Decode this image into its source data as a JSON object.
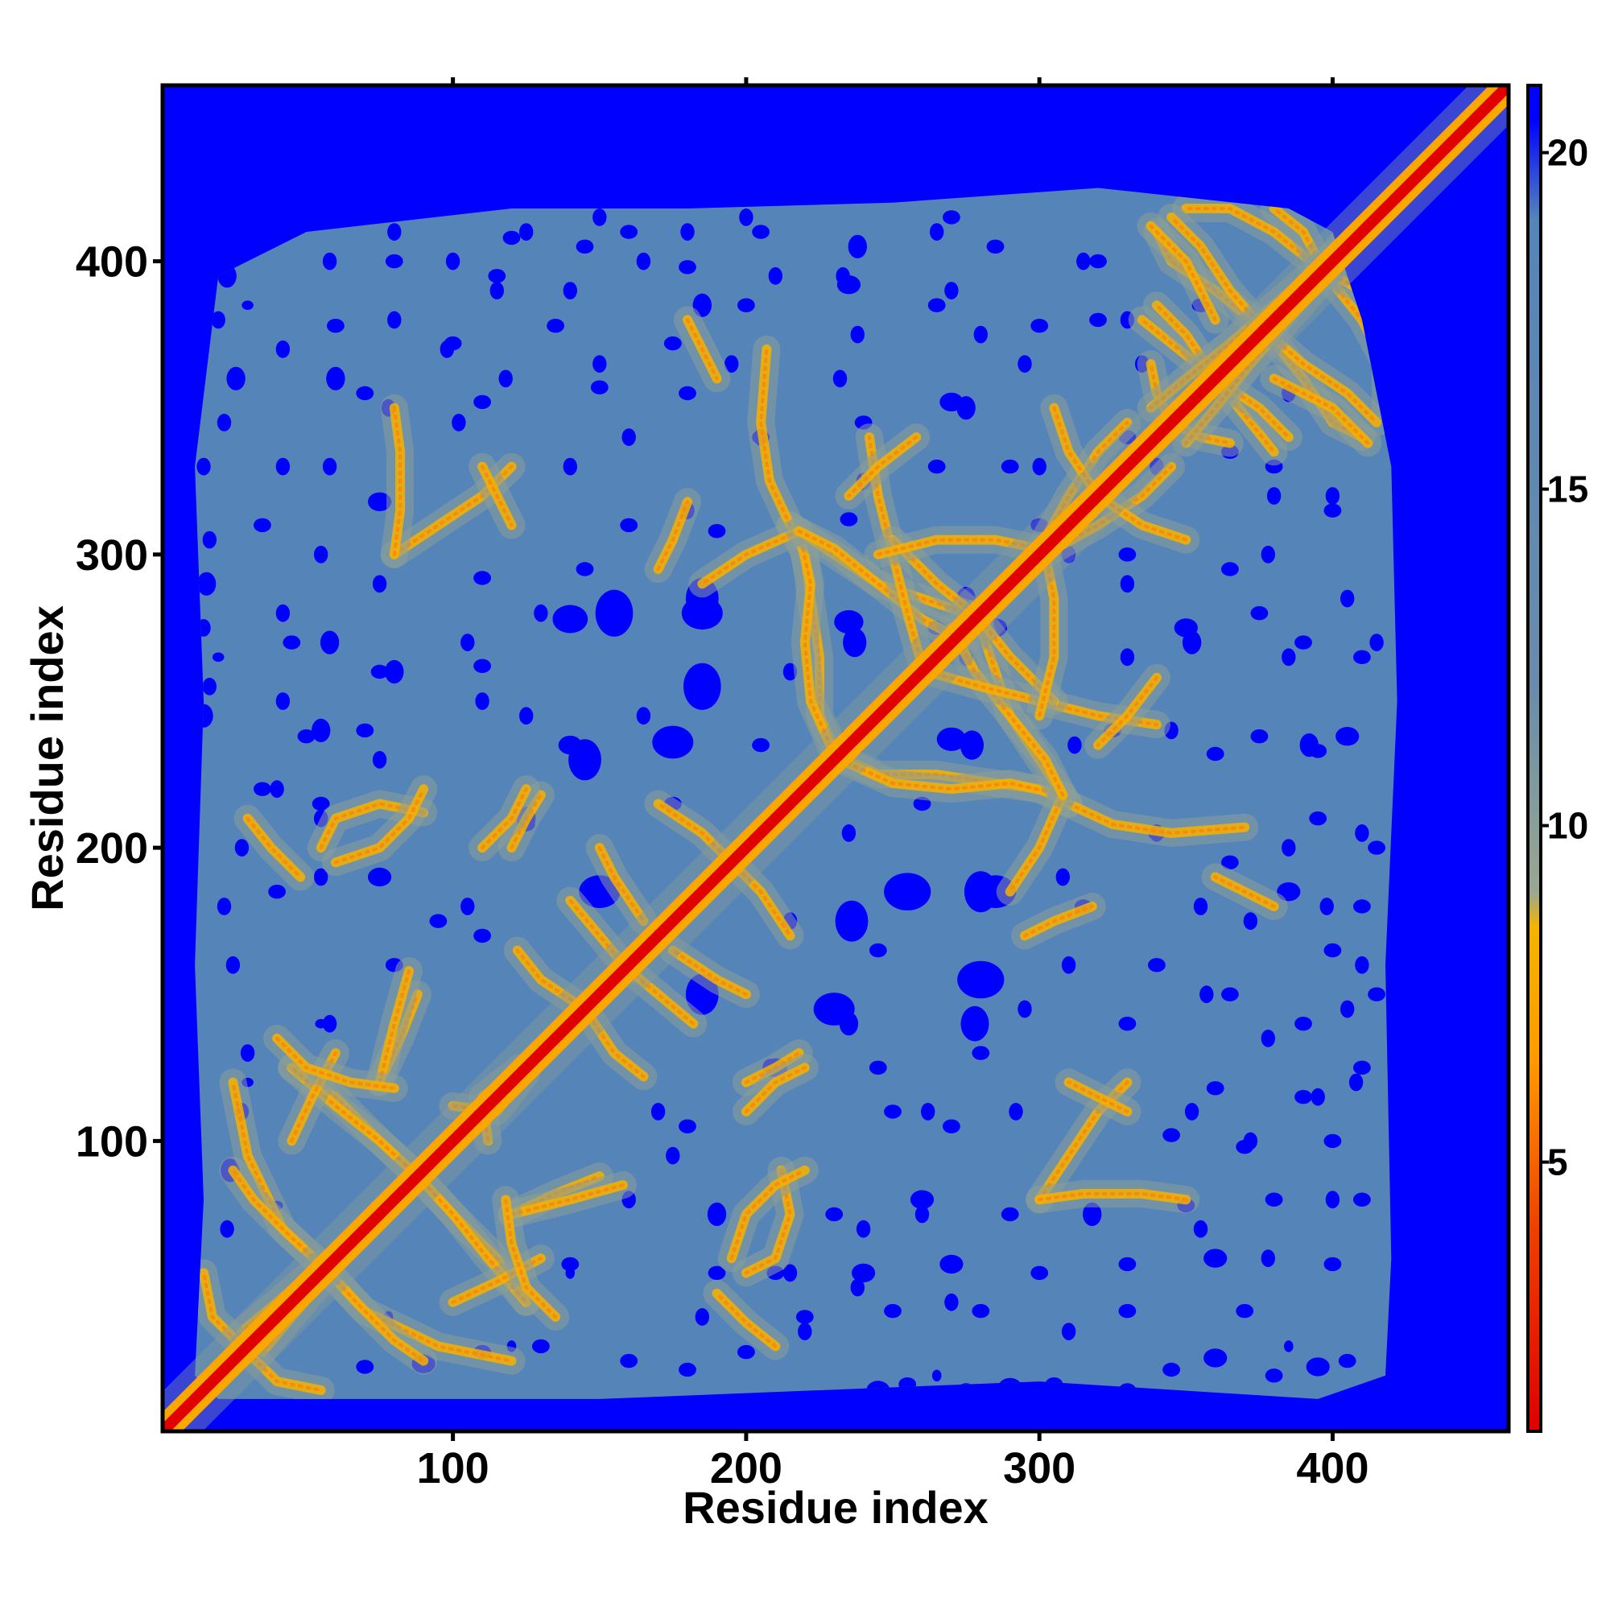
{
  "chart_data": {
    "type": "heatmap",
    "title": "",
    "xlabel": "Residue index",
    "ylabel": "Residue index",
    "xlim": [
      1,
      460
    ],
    "ylim": [
      1,
      460
    ],
    "x_ticks": [
      100,
      200,
      300,
      400
    ],
    "y_ticks": [
      100,
      200,
      300,
      400
    ],
    "colorbar": {
      "range": [
        1,
        21
      ],
      "ticks": [
        5,
        10,
        15,
        20
      ],
      "stops": [
        {
          "value": 1,
          "color": "#e00000"
        },
        {
          "value": 4,
          "color": "#ee4000"
        },
        {
          "value": 6.5,
          "color": "#ff9900"
        },
        {
          "value": 8.5,
          "color": "#f5b400"
        },
        {
          "value": 9,
          "color": "#9aa890"
        },
        {
          "value": 12,
          "color": "#6a8caa"
        },
        {
          "value": 19,
          "color": "#5585b8"
        },
        {
          "value": 20.5,
          "color": "#0000ff"
        },
        {
          "value": 21,
          "color": "#0000ff"
        }
      ]
    },
    "background_value": 21,
    "protein_extent": [
      [
        15,
        420
      ],
      [
        1,
        460
      ]
    ],
    "diagonal_value": 1,
    "void_clusters": [
      [
        70,
        23,
        3
      ],
      [
        90,
        24,
        4
      ],
      [
        245,
        15,
        4
      ],
      [
        255,
        17,
        3
      ],
      [
        275,
        15,
        3
      ],
      [
        290,
        16,
        4
      ],
      [
        305,
        17,
        3
      ],
      [
        330,
        15,
        3
      ],
      [
        345,
        22,
        3
      ],
      [
        360,
        26,
        4
      ],
      [
        380,
        20,
        3
      ],
      [
        395,
        23,
        4
      ],
      [
        405,
        25,
        3
      ],
      [
        370,
        42,
        3
      ],
      [
        330,
        42,
        3
      ],
      [
        220,
        40,
        3
      ],
      [
        280,
        42,
        3
      ],
      [
        250,
        42,
        3
      ],
      [
        400,
        58,
        3
      ],
      [
        360,
        60,
        4
      ],
      [
        330,
        58,
        3
      ],
      [
        160,
        25,
        3
      ],
      [
        180,
        22,
        3
      ],
      [
        200,
        28,
        3
      ],
      [
        130,
        30,
        3
      ],
      [
        110,
        28,
        3
      ],
      [
        140,
        58,
        3
      ],
      [
        190,
        55,
        3
      ],
      [
        210,
        55,
        3
      ],
      [
        240,
        55,
        4
      ],
      [
        270,
        58,
        4
      ],
      [
        300,
        55,
        3
      ],
      [
        230,
        75,
        3
      ],
      [
        260,
        80,
        4
      ],
      [
        290,
        75,
        3
      ],
      [
        350,
        78,
        3
      ],
      [
        380,
        80,
        3
      ],
      [
        410,
        80,
        3
      ],
      [
        400,
        100,
        3
      ],
      [
        370,
        98,
        3
      ],
      [
        345,
        102,
        3
      ],
      [
        270,
        105,
        3
      ],
      [
        250,
        110,
        3
      ],
      [
        180,
        105,
        3
      ],
      [
        210,
        125,
        4
      ],
      [
        245,
        125,
        3
      ],
      [
        280,
        130,
        3
      ],
      [
        360,
        118,
        3
      ],
      [
        390,
        115,
        3
      ],
      [
        410,
        125,
        3
      ],
      [
        40,
        78,
        2
      ],
      [
        30,
        120,
        2
      ],
      [
        55,
        140,
        2
      ],
      [
        80,
        160,
        3
      ],
      [
        110,
        170,
        3
      ],
      [
        160,
        160,
        3
      ],
      [
        150,
        185,
        7
      ],
      [
        230,
        145,
        7
      ],
      [
        245,
        165,
        3
      ],
      [
        255,
        185,
        8
      ],
      [
        280,
        155,
        8
      ],
      [
        285,
        185,
        7
      ],
      [
        315,
        180,
        3
      ],
      [
        330,
        140,
        3
      ],
      [
        340,
        160,
        3
      ],
      [
        365,
        150,
        3
      ],
      [
        390,
        140,
        3
      ],
      [
        400,
        165,
        3
      ],
      [
        415,
        150,
        3
      ],
      [
        385,
        185,
        4
      ],
      [
        410,
        180,
        3
      ],
      [
        40,
        185,
        3
      ],
      [
        75,
        190,
        4
      ],
      [
        95,
        175,
        3
      ],
      [
        35,
        220,
        3
      ],
      [
        55,
        215,
        3
      ],
      [
        125,
        208,
        3
      ],
      [
        175,
        215,
        3
      ],
      [
        260,
        215,
        3
      ],
      [
        340,
        205,
        3
      ],
      [
        365,
        195,
        3
      ],
      [
        395,
        210,
        3
      ],
      [
        415,
        200,
        3
      ],
      [
        50,
        238,
        3
      ],
      [
        70,
        240,
        3
      ],
      [
        140,
        235,
        4
      ],
      [
        175,
        236,
        7
      ],
      [
        205,
        235,
        3
      ],
      [
        235,
        238,
        3
      ],
      [
        270,
        237,
        5
      ],
      [
        325,
        240,
        3
      ],
      [
        360,
        232,
        3
      ],
      [
        375,
        238,
        3
      ],
      [
        395,
        233,
        3
      ],
      [
        405,
        238,
        4
      ],
      [
        20,
        265,
        2
      ],
      [
        45,
        270,
        3
      ],
      [
        75,
        260,
        3
      ],
      [
        110,
        262,
        3
      ],
      [
        140,
        278,
        6
      ],
      [
        185,
        280,
        7
      ],
      [
        235,
        277,
        5
      ],
      [
        265,
        275,
        3
      ],
      [
        285,
        275,
        4
      ],
      [
        350,
        275,
        4
      ],
      [
        375,
        280,
        3
      ],
      [
        390,
        270,
        3
      ],
      [
        410,
        265,
        3
      ],
      [
        35,
        310,
        3
      ],
      [
        75,
        318,
        4
      ],
      [
        110,
        292,
        3
      ],
      [
        145,
        295,
        3
      ],
      [
        160,
        310,
        3
      ],
      [
        190,
        308,
        3
      ],
      [
        235,
        312,
        3
      ],
      [
        265,
        330,
        3
      ],
      [
        300,
        310,
        3
      ],
      [
        330,
        300,
        3
      ],
      [
        365,
        295,
        3
      ],
      [
        380,
        330,
        3
      ],
      [
        400,
        315,
        3
      ],
      [
        70,
        355,
        3
      ],
      [
        110,
        352,
        3
      ],
      [
        150,
        357,
        3
      ],
      [
        180,
        355,
        3
      ],
      [
        205,
        340,
        3
      ],
      [
        240,
        345,
        3
      ],
      [
        270,
        352,
        4
      ],
      [
        290,
        330,
        3
      ],
      [
        330,
        340,
        3
      ],
      [
        365,
        335,
        3
      ],
      [
        30,
        385,
        2
      ],
      [
        60,
        378,
        3
      ],
      [
        100,
        372,
        3
      ],
      [
        135,
        378,
        3
      ],
      [
        175,
        372,
        3
      ],
      [
        200,
        385,
        3
      ],
      [
        235,
        392,
        4
      ],
      [
        265,
        385,
        3
      ],
      [
        300,
        378,
        3
      ],
      [
        320,
        380,
        3
      ],
      [
        355,
        385,
        3
      ],
      [
        80,
        400,
        3
      ],
      [
        115,
        395,
        3
      ],
      [
        145,
        405,
        3
      ],
      [
        180,
        398,
        3
      ],
      [
        205,
        410,
        3
      ],
      [
        285,
        405,
        3
      ],
      [
        320,
        400,
        3
      ],
      [
        120,
        408,
        3
      ],
      [
        160,
        410,
        3
      ],
      [
        270,
        415,
        3
      ]
    ],
    "contact_arcs": [
      [
        [
          55,
          58
        ],
        [
          42,
          70
        ],
        [
          30,
          95
        ],
        [
          25,
          120
        ]
      ],
      [
        [
          55,
          58
        ],
        [
          68,
          44
        ],
        [
          80,
          32
        ],
        [
          90,
          25
        ]
      ],
      [
        [
          55,
          58
        ],
        [
          40,
          45
        ],
        [
          28,
          35
        ]
      ],
      [
        [
          30,
          28
        ],
        [
          18,
          40
        ],
        [
          15,
          55
        ]
      ],
      [
        [
          88,
          88
        ],
        [
          100,
          75
        ],
        [
          115,
          60
        ],
        [
          125,
          45
        ]
      ],
      [
        [
          88,
          88
        ],
        [
          75,
          100
        ],
        [
          60,
          112
        ],
        [
          45,
          125
        ]
      ],
      [
        [
          100,
          45
        ],
        [
          115,
          52
        ],
        [
          130,
          60
        ]
      ],
      [
        [
          120,
          75
        ],
        [
          135,
          82
        ],
        [
          150,
          88
        ]
      ],
      [
        [
          125,
          123
        ],
        [
          115,
          110
        ],
        [
          100,
          112
        ]
      ],
      [
        [
          75,
          120
        ],
        [
          80,
          140
        ],
        [
          85,
          158
        ]
      ],
      [
        [
          40,
          135
        ],
        [
          50,
          125
        ],
        [
          65,
          120
        ],
        [
          80,
          118
        ]
      ],
      [
        [
          145,
          145
        ],
        [
          155,
          130
        ],
        [
          165,
          122
        ]
      ],
      [
        [
          160,
          158
        ],
        [
          150,
          170
        ],
        [
          140,
          182
        ]
      ],
      [
        [
          55,
          200
        ],
        [
          60,
          210
        ],
        [
          75,
          215
        ],
        [
          90,
          212
        ]
      ],
      [
        [
          120,
          200
        ],
        [
          125,
          210
        ],
        [
          130,
          218
        ]
      ],
      [
        [
          150,
          200
        ],
        [
          155,
          190
        ],
        [
          165,
          175
        ]
      ],
      [
        [
          195,
          195
        ],
        [
          185,
          205
        ],
        [
          170,
          215
        ]
      ],
      [
        [
          195,
          60
        ],
        [
          200,
          75
        ],
        [
          210,
          85
        ],
        [
          220,
          90
        ]
      ],
      [
        [
          200,
          110
        ],
        [
          210,
          120
        ],
        [
          220,
          125
        ]
      ],
      [
        [
          230,
          232
        ],
        [
          245,
          225
        ],
        [
          265,
          225
        ],
        [
          285,
          222
        ],
        [
          300,
          220
        ],
        [
          310,
          215
        ]
      ],
      [
        [
          230,
          232
        ],
        [
          222,
          250
        ],
        [
          220,
          270
        ],
        [
          222,
          290
        ],
        [
          218,
          308
        ]
      ],
      [
        [
          310,
          215
        ],
        [
          300,
          230
        ],
        [
          290,
          245
        ],
        [
          285,
          260
        ],
        [
          280,
          275
        ]
      ],
      [
        [
          310,
          215
        ],
        [
          325,
          208
        ],
        [
          345,
          205
        ],
        [
          370,
          207
        ]
      ],
      [
        [
          218,
          308
        ],
        [
          200,
          300
        ],
        [
          185,
          290
        ]
      ],
      [
        [
          218,
          308
        ],
        [
          230,
          302
        ],
        [
          245,
          290
        ],
        [
          260,
          278
        ],
        [
          275,
          270
        ]
      ],
      [
        [
          260,
          262
        ],
        [
          255,
          280
        ],
        [
          250,
          300
        ],
        [
          245,
          320
        ],
        [
          242,
          340
        ]
      ],
      [
        [
          280,
          278
        ],
        [
          265,
          290
        ],
        [
          250,
          305
        ]
      ],
      [
        [
          300,
          302
        ],
        [
          285,
          305
        ],
        [
          265,
          305
        ],
        [
          245,
          300
        ]
      ],
      [
        [
          300,
          302
        ],
        [
          310,
          320
        ],
        [
          320,
          335
        ],
        [
          330,
          345
        ]
      ],
      [
        [
          320,
          320
        ],
        [
          335,
          310
        ],
        [
          350,
          305
        ]
      ],
      [
        [
          340,
          258
        ],
        [
          330,
          245
        ],
        [
          320,
          235
        ]
      ],
      [
        [
          300,
          80
        ],
        [
          310,
          95
        ],
        [
          320,
          110
        ],
        [
          330,
          120
        ]
      ],
      [
        [
          300,
          80
        ],
        [
          315,
          82
        ],
        [
          335,
          82
        ],
        [
          350,
          80
        ]
      ],
      [
        [
          395,
          398
        ],
        [
          380,
          410
        ],
        [
          365,
          418
        ],
        [
          350,
          418
        ]
      ],
      [
        [
          395,
          398
        ],
        [
          410,
          390
        ],
        [
          418,
          380
        ]
      ],
      [
        [
          375,
          378
        ],
        [
          360,
          390
        ],
        [
          345,
          400
        ],
        [
          340,
          410
        ]
      ],
      [
        [
          375,
          378
        ],
        [
          390,
          365
        ],
        [
          405,
          355
        ],
        [
          415,
          345
        ]
      ],
      [
        [
          360,
          360
        ],
        [
          345,
          372
        ],
        [
          335,
          380
        ]
      ],
      [
        [
          360,
          360
        ],
        [
          375,
          350
        ],
        [
          385,
          340
        ]
      ],
      [
        [
          345,
          345
        ],
        [
          355,
          340
        ],
        [
          365,
          338
        ]
      ],
      [
        [
          395,
          398
        ],
        [
          380,
          385
        ],
        [
          365,
          372
        ],
        [
          350,
          360
        ],
        [
          338,
          350
        ]
      ],
      [
        [
          375,
          378
        ],
        [
          390,
          390
        ],
        [
          405,
          402
        ],
        [
          415,
          412
        ]
      ],
      [
        [
          338,
          412
        ],
        [
          350,
          400
        ],
        [
          355,
          390
        ],
        [
          360,
          380
        ]
      ],
      [
        [
          395,
          398
        ],
        [
          408,
          408
        ],
        [
          418,
          418
        ]
      ],
      [
        [
          170,
          295
        ],
        [
          175,
          305
        ],
        [
          180,
          318
        ]
      ],
      [
        [
          180,
          380
        ],
        [
          185,
          370
        ],
        [
          190,
          360
        ]
      ],
      [
        [
          30,
          210
        ],
        [
          38,
          200
        ],
        [
          48,
          190
        ]
      ],
      [
        [
          110,
          330
        ],
        [
          115,
          320
        ],
        [
          120,
          310
        ]
      ]
    ]
  }
}
